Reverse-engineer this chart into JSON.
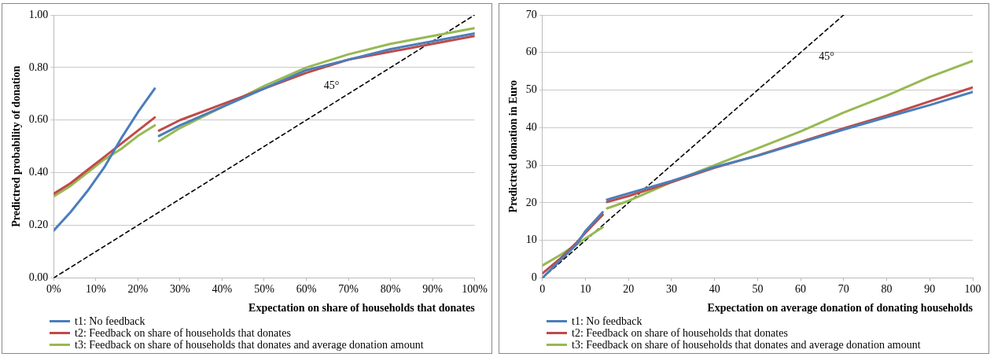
{
  "chart_data": [
    {
      "type": "line",
      "xlabel": "Expectation on share of households that donates",
      "ylabel": "Predictred probability of donation",
      "x": [
        0,
        4,
        8,
        12,
        16,
        20,
        24,
        24.5,
        25,
        30,
        40,
        50,
        60,
        70,
        80,
        90,
        100
      ],
      "series": [
        {
          "name": "t1: No feedback",
          "color": "#4a7ebb",
          "values": [
            0.18,
            0.25,
            0.33,
            0.42,
            0.53,
            0.63,
            0.72,
            null,
            0.54,
            0.58,
            0.65,
            0.72,
            0.79,
            0.83,
            0.87,
            0.9,
            0.93
          ]
        },
        {
          "name": "t2: Feedback on share of households that donates",
          "color": "#be4b48",
          "values": [
            0.32,
            0.36,
            0.41,
            0.46,
            0.51,
            0.56,
            0.61,
            null,
            0.56,
            0.6,
            0.66,
            0.72,
            0.78,
            0.83,
            0.86,
            0.89,
            0.92
          ]
        },
        {
          "name": "t3: Feedback on share of households that donates and average donation amount",
          "color": "#98b954",
          "values": [
            0.31,
            0.35,
            0.4,
            0.45,
            0.49,
            0.54,
            0.58,
            null,
            0.52,
            0.57,
            0.65,
            0.73,
            0.8,
            0.85,
            0.89,
            0.92,
            0.95
          ]
        },
        {
          "color": "#000000",
          "line_style": "dashed",
          "x": [
            0,
            100
          ],
          "values": [
            0,
            1
          ]
        }
      ],
      "xlim": [
        0,
        100
      ],
      "xticks": [
        {
          "value": 0,
          "label": "0%"
        },
        {
          "value": 10,
          "label": "10%"
        },
        {
          "value": 20,
          "label": "20%"
        },
        {
          "value": 30,
          "label": "30%"
        },
        {
          "value": 40,
          "label": "40%"
        },
        {
          "value": 50,
          "label": "50%"
        },
        {
          "value": 60,
          "label": "60%"
        },
        {
          "value": 70,
          "label": "70%"
        },
        {
          "value": 80,
          "label": "80%"
        },
        {
          "value": 90,
          "label": "90%"
        },
        {
          "value": 100,
          "label": "100%"
        }
      ],
      "ylim": [
        0,
        1
      ],
      "yticks": [
        {
          "value": 0,
          "label": "0.00"
        },
        {
          "value": 0.2,
          "label": "0.20"
        },
        {
          "value": 0.4,
          "label": "0.40"
        },
        {
          "value": 0.6,
          "label": "0.60"
        },
        {
          "value": 0.8,
          "label": "0.80"
        },
        {
          "value": 1,
          "label": "1.00"
        }
      ],
      "annotations": [
        "45°"
      ],
      "grid": "y",
      "legend": "bottom left",
      "marker": "none",
      "line_style": "solid"
    },
    {
      "type": "line",
      "xlabel": "Expectation on average donation of donating households",
      "ylabel": "Predictred donation in Euro",
      "x": [
        0,
        4,
        8,
        10,
        14,
        14.5,
        15,
        20,
        30,
        40,
        50,
        60,
        70,
        80,
        90,
        100
      ],
      "series": [
        {
          "name": "t1: No feedback",
          "color": "#4a7ebb",
          "values": [
            0,
            4.5,
            9,
            12.5,
            17.5,
            null,
            20.8,
            22.5,
            25.8,
            29.5,
            32.5,
            36,
            39.5,
            42.8,
            46,
            49.5
          ]
        },
        {
          "name": "t2: Feedback on share of households that donates",
          "color": "#be4b48",
          "values": [
            1.2,
            5,
            9.5,
            12,
            16.8,
            null,
            20.2,
            21.8,
            25.5,
            29.3,
            32.6,
            36.2,
            39.8,
            43.2,
            47,
            50.7
          ]
        },
        {
          "name": "t3: Feedback on share of households that donates and average donation amount",
          "color": "#98b954",
          "values": [
            3.3,
            6,
            9,
            10.5,
            13.5,
            null,
            18.5,
            20.5,
            25.5,
            30,
            34.5,
            39,
            44,
            48.5,
            53.5,
            57.8
          ]
        },
        {
          "color": "#000000",
          "line_style": "dashed",
          "x": [
            0,
            70
          ],
          "values": [
            0,
            70
          ]
        }
      ],
      "xlim": [
        0,
        100
      ],
      "xticks": [
        0,
        10,
        20,
        30,
        40,
        50,
        60,
        70,
        80,
        90,
        100
      ],
      "ylim": [
        0,
        70
      ],
      "yticks": [
        0,
        10,
        20,
        30,
        40,
        50,
        60,
        70
      ],
      "annotations": [
        "45°"
      ],
      "grid": "y",
      "legend": "bottom left",
      "marker": "none",
      "line_style": "solid"
    }
  ]
}
